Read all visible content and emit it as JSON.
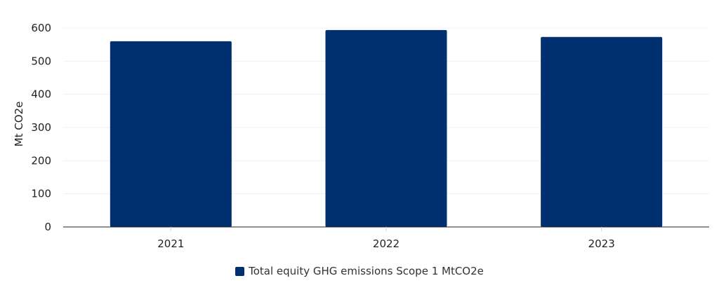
{
  "chart_data": {
    "type": "bar",
    "categories": [
      "2021",
      "2022",
      "2023"
    ],
    "series": [
      {
        "name": "Total equity GHG emissions Scope 1 MtCO2e",
        "values": [
          560,
          594,
          573
        ],
        "color": "#003070"
      }
    ],
    "ylabel": "Mt CO2e",
    "xlabel": "",
    "ylim": [
      0,
      600
    ],
    "yticks": [
      0,
      100,
      200,
      300,
      400,
      500,
      600
    ],
    "grid": true,
    "legend_position": "bottom-center"
  }
}
